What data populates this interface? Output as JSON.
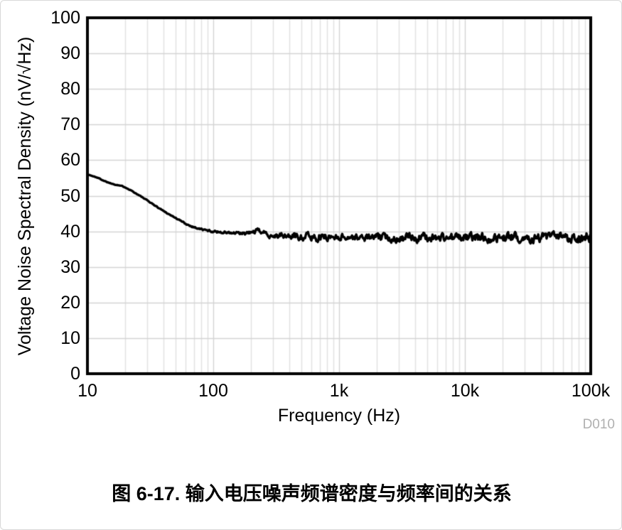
{
  "figure": {
    "caption_prefix": "图 6-17.",
    "caption_text": "输入电压噪声频谱密度与频率间的关系",
    "watermark": "D010"
  },
  "chart_data": {
    "type": "line",
    "title": "",
    "xlabel": "Frequency (Hz)",
    "ylabel": "Voltage Noise Spectral Density (nV/√Hz)",
    "x_scale": "log",
    "xlim": [
      10,
      100000
    ],
    "ylim": [
      0,
      100
    ],
    "grid": "on",
    "legend": "none",
    "x_ticks": [
      {
        "label": "10",
        "value": 10
      },
      {
        "label": "100",
        "value": 100
      },
      {
        "label": "1k",
        "value": 1000
      },
      {
        "label": "10k",
        "value": 10000
      },
      {
        "label": "100k",
        "value": 100000
      }
    ],
    "y_ticks": [
      {
        "label": "0",
        "value": 0
      },
      {
        "label": "10",
        "value": 10
      },
      {
        "label": "20",
        "value": 20
      },
      {
        "label": "30",
        "value": 30
      },
      {
        "label": "40",
        "value": 40
      },
      {
        "label": "50",
        "value": 50
      },
      {
        "label": "60",
        "value": 60
      },
      {
        "label": "70",
        "value": 70
      },
      {
        "label": "80",
        "value": 80
      },
      {
        "label": "90",
        "value": 90
      },
      {
        "label": "100",
        "value": 100
      }
    ],
    "series": [
      {
        "name": "input-voltage-noise-density",
        "color": "#000000",
        "line_width": 3.4,
        "trend_points": [
          [
            10,
            56.0
          ],
          [
            11,
            55.5
          ],
          [
            12,
            55.1
          ],
          [
            13,
            54.5
          ],
          [
            14,
            54.0
          ],
          [
            15,
            53.6
          ],
          [
            16,
            53.3
          ],
          [
            18,
            52.9
          ],
          [
            20,
            52.4
          ],
          [
            22,
            51.6
          ],
          [
            25,
            50.4
          ],
          [
            28,
            49.3
          ],
          [
            32,
            48.0
          ],
          [
            36,
            46.8
          ],
          [
            40,
            45.8
          ],
          [
            45,
            44.7
          ],
          [
            50,
            43.8
          ],
          [
            56,
            42.8
          ],
          [
            63,
            41.8
          ],
          [
            70,
            41.2
          ],
          [
            80,
            40.6
          ],
          [
            90,
            40.2
          ],
          [
            100,
            40.0
          ],
          [
            115,
            39.8
          ],
          [
            130,
            39.6
          ],
          [
            150,
            39.4
          ],
          [
            175,
            39.3
          ],
          [
            200,
            39.6
          ],
          [
            225,
            40.2
          ],
          [
            250,
            39.7
          ],
          [
            280,
            39.0
          ],
          [
            320,
            38.8
          ],
          [
            400,
            38.6
          ],
          [
            500,
            38.7
          ],
          [
            600,
            38.4
          ],
          [
            800,
            38.4
          ],
          [
            1000,
            38.5
          ],
          [
            1500,
            38.2
          ],
          [
            2000,
            38.3
          ],
          [
            3000,
            38.1
          ],
          [
            5000,
            38.3
          ],
          [
            8000,
            38.2
          ],
          [
            12000,
            38.3
          ],
          [
            20000,
            38.2
          ],
          [
            35000,
            38.3
          ],
          [
            60000,
            38.2
          ],
          [
            100000,
            38.4
          ]
        ],
        "noise_envelope": [
          [
            10,
            0.08
          ],
          [
            40,
            0.1
          ],
          [
            70,
            0.18
          ],
          [
            100,
            0.25
          ],
          [
            140,
            0.35
          ],
          [
            200,
            0.45
          ],
          [
            250,
            0.5
          ],
          [
            320,
            0.7
          ],
          [
            420,
            0.85
          ],
          [
            520,
            1.05
          ],
          [
            650,
            1.0
          ],
          [
            800,
            0.85
          ],
          [
            1000,
            0.8
          ],
          [
            1400,
            0.75
          ],
          [
            2000,
            0.9
          ],
          [
            3000,
            1.0
          ],
          [
            4000,
            1.05
          ],
          [
            6000,
            1.0
          ],
          [
            10000,
            1.05
          ],
          [
            20000,
            1.1
          ],
          [
            40000,
            1.15
          ],
          [
            70000,
            1.25
          ],
          [
            100000,
            1.35
          ]
        ],
        "noise_seed": 1337
      }
    ],
    "colors": {
      "curve": "#000000",
      "frame": "#000000",
      "grid_major": "#d4d4d4",
      "grid_minor": "#e2e2e2",
      "watermark": "#b0b0b0",
      "background": "#ffffff"
    }
  }
}
